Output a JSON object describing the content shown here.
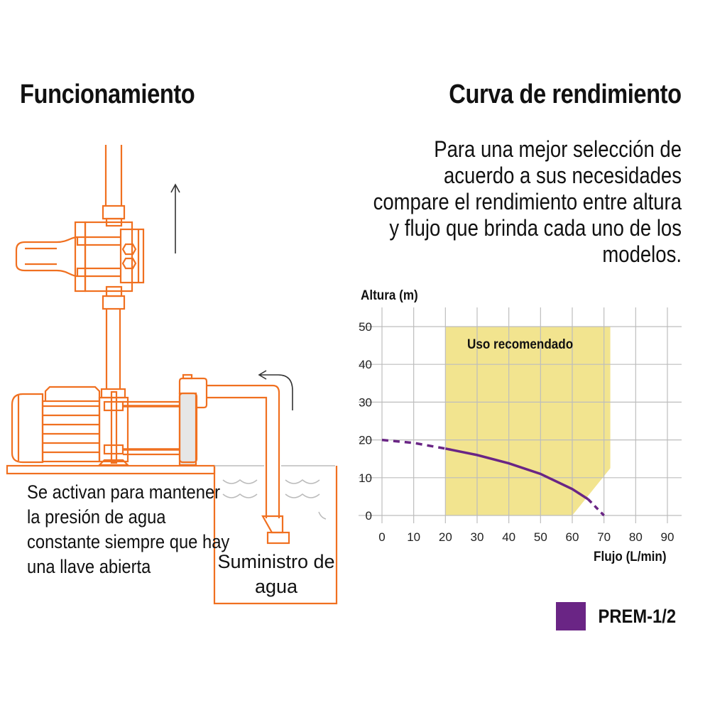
{
  "left": {
    "title": "Funcionamiento",
    "description": "Se activan para mantener la presión de agua constante siempre que hay una llave abierta",
    "supply_label": "Suministro de agua"
  },
  "right": {
    "title": "Curva de rendimiento",
    "description": "Para una mejor selección de acuerdo a sus necesidades compare el rendimiento entre altura y flujo que brinda cada uno de los modelos."
  },
  "colors": {
    "illustration": "#f07020",
    "curve": "#6a2585",
    "recommended": "#f2e48f",
    "grid": "#bdbdbd"
  },
  "chart_data": {
    "type": "line",
    "xlabel": "Flujo (L/min)",
    "ylabel": "Altura (m)",
    "xlim": [
      0,
      90
    ],
    "ylim": [
      0,
      50
    ],
    "xticks": [
      0,
      10,
      20,
      30,
      40,
      50,
      60,
      70,
      80,
      90
    ],
    "yticks": [
      0,
      10,
      20,
      30,
      40,
      50
    ],
    "grid": true,
    "region": {
      "label": "Uso recomendado",
      "polygon": [
        [
          20,
          50
        ],
        [
          72,
          50
        ],
        [
          72,
          12.5
        ],
        [
          60,
          0
        ],
        [
          20,
          0
        ]
      ]
    },
    "series": [
      {
        "name": "PREM-1/2",
        "x": [
          0,
          10,
          20,
          30,
          40,
          50,
          60,
          65,
          70
        ],
        "y": [
          20,
          19.2,
          17.7,
          16,
          13.8,
          11,
          7,
          4.3,
          0
        ],
        "solid_range": [
          20,
          65
        ]
      }
    ],
    "legend": {
      "position": "bottom-right",
      "entries": [
        "PREM-1/2"
      ]
    }
  }
}
